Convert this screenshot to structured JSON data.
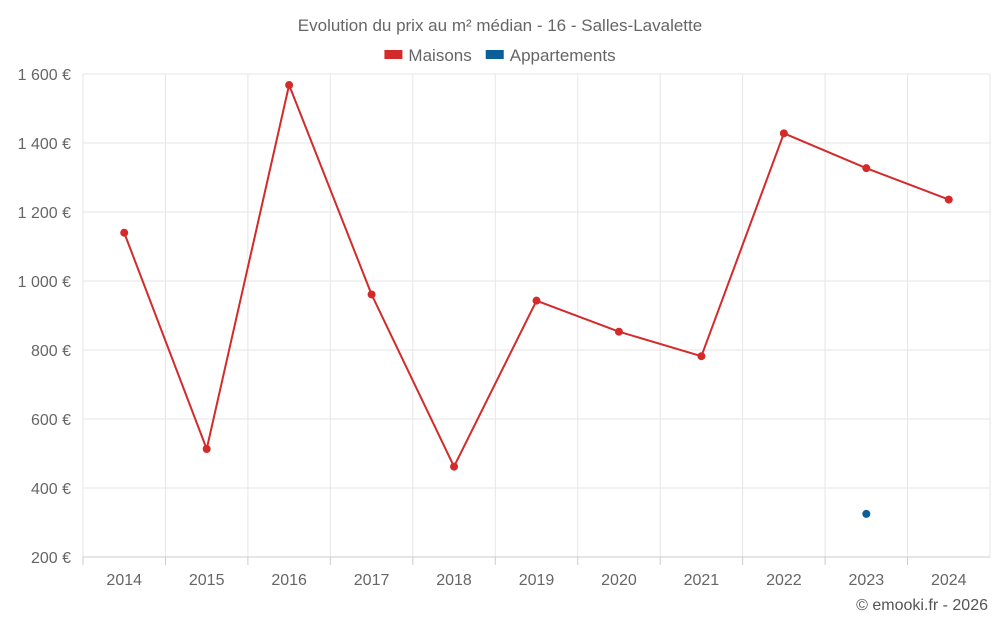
{
  "chart_data": {
    "type": "line",
    "title": "Evolution du prix au m² médian - 16 - Salles-Lavalette",
    "categories": [
      "2014",
      "2015",
      "2016",
      "2017",
      "2018",
      "2019",
      "2020",
      "2021",
      "2022",
      "2023",
      "2024"
    ],
    "series": [
      {
        "name": "Maisons",
        "color": "#d32a2a",
        "values": [
          1140,
          513,
          1568,
          961,
          462,
          943,
          853,
          782,
          1428,
          1327,
          1236
        ]
      },
      {
        "name": "Appartements",
        "color": "#0a5e99",
        "values": [
          null,
          null,
          null,
          null,
          null,
          null,
          null,
          null,
          null,
          325,
          null
        ]
      }
    ],
    "ylim": [
      200,
      1600
    ],
    "yticks": [
      200,
      400,
      600,
      800,
      1000,
      1200,
      1400,
      1600
    ],
    "ytick_labels": [
      "200 €",
      "400 €",
      "600 €",
      "800 €",
      "1 000 €",
      "1 200 €",
      "1 400 €",
      "1 600 €"
    ],
    "legend_position": "top-center",
    "grid": true
  },
  "credit": "© emooki.fr - 2026"
}
